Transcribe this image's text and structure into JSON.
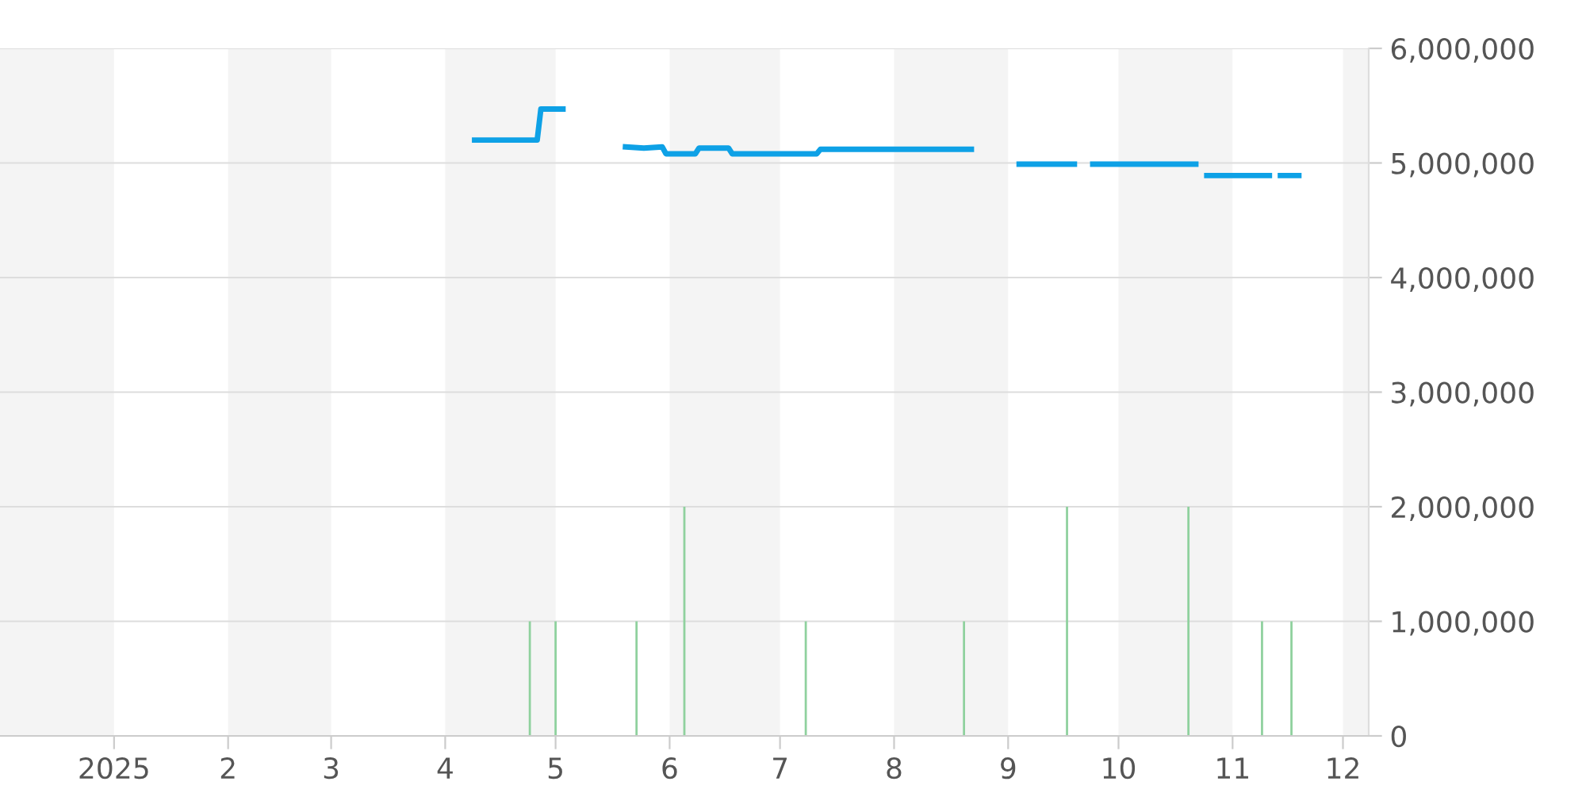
{
  "chart_data": {
    "type": "line",
    "x": [
      "2025-04-09",
      "2025-04-26",
      "2025-04-27",
      "2025-05-03",
      "2025-05-10",
      "2025-05-20",
      "2025-05-25",
      "2025-05-30",
      "2025-05-31",
      "2025-06-08",
      "2025-06-09",
      "2025-06-17",
      "2025-06-18",
      "2025-07-11",
      "2025-07-12",
      "2025-08-22",
      "2025-08-28",
      "2025-09-04",
      "2025-09-19",
      "2025-09-21",
      "2025-09-24",
      "2025-10-22",
      "2025-10-23",
      "2025-10-25",
      "2025-11-11",
      "2025-11-12",
      "2025-11-14",
      "2025-11-19"
    ],
    "series": [
      {
        "color": "#0ea1e6",
        "values": [
          5200000,
          5200000,
          5470000,
          5470000,
          null,
          5140000,
          5130000,
          5140000,
          5080000,
          5080000,
          5130000,
          5130000,
          5080000,
          5080000,
          5120000,
          5120000,
          null,
          4990000,
          4990000,
          null,
          4990000,
          4990000,
          null,
          4890000,
          4890000,
          null,
          4890000,
          4890000
        ]
      },
      {
        "type": "bar",
        "color": "#8fd19e",
        "x": [
          "2025-04-24",
          "2025-05-01",
          "2025-05-23",
          "2025-06-05",
          "2025-07-08",
          "2025-08-20",
          "2025-09-17",
          "2025-10-20",
          "2025-11-09",
          "2025-11-17"
        ],
        "values": [
          1000000,
          1000000,
          1000000,
          2000000,
          1000000,
          1000000,
          2000000,
          2000000,
          1000000,
          1000000
        ]
      }
    ],
    "xlim": [
      "2024-12-01",
      "2025-12-08"
    ],
    "xticks": [
      {
        "value": "2025-01-01",
        "label": "2025"
      },
      {
        "value": "2025-02-01",
        "label": "2"
      },
      {
        "value": "2025-03-01",
        "label": "3"
      },
      {
        "value": "2025-04-01",
        "label": "4"
      },
      {
        "value": "2025-05-01",
        "label": "5"
      },
      {
        "value": "2025-06-01",
        "label": "6"
      },
      {
        "value": "2025-07-01",
        "label": "7"
      },
      {
        "value": "2025-08-01",
        "label": "8"
      },
      {
        "value": "2025-09-01",
        "label": "9"
      },
      {
        "value": "2025-10-01",
        "label": "10"
      },
      {
        "value": "2025-11-01",
        "label": "11"
      },
      {
        "value": "2025-12-01",
        "label": "12"
      }
    ],
    "ylim": [
      0,
      6000000
    ],
    "yticks": [
      {
        "value": 0,
        "label": "0"
      },
      {
        "value": 1000000,
        "label": "1,000,000"
      },
      {
        "value": 2000000,
        "label": "2,000,000"
      },
      {
        "value": 3000000,
        "label": "3,000,000"
      },
      {
        "value": 4000000,
        "label": "4,000,000"
      },
      {
        "value": 5000000,
        "label": "5,000,000"
      },
      {
        "value": 6000000,
        "label": "6,000,000"
      }
    ],
    "grid": "y",
    "bands": [
      {
        "axis": "x",
        "from": "2024-12-01",
        "to": "2025-01-01",
        "color": "#f4f4f4"
      },
      {
        "axis": "x",
        "from": "2025-02-01",
        "to": "2025-03-01",
        "color": "#f4f4f4"
      },
      {
        "axis": "x",
        "from": "2025-04-01",
        "to": "2025-05-01",
        "color": "#f4f4f4"
      },
      {
        "axis": "x",
        "from": "2025-06-01",
        "to": "2025-07-01",
        "color": "#f4f4f4"
      },
      {
        "axis": "x",
        "from": "2025-08-01",
        "to": "2025-09-01",
        "color": "#f4f4f4"
      },
      {
        "axis": "x",
        "from": "2025-10-01",
        "to": "2025-11-01",
        "color": "#f4f4f4"
      },
      {
        "axis": "x",
        "from": "2025-12-01",
        "to": "2025-12-08",
        "color": "#f4f4f4"
      }
    ]
  }
}
